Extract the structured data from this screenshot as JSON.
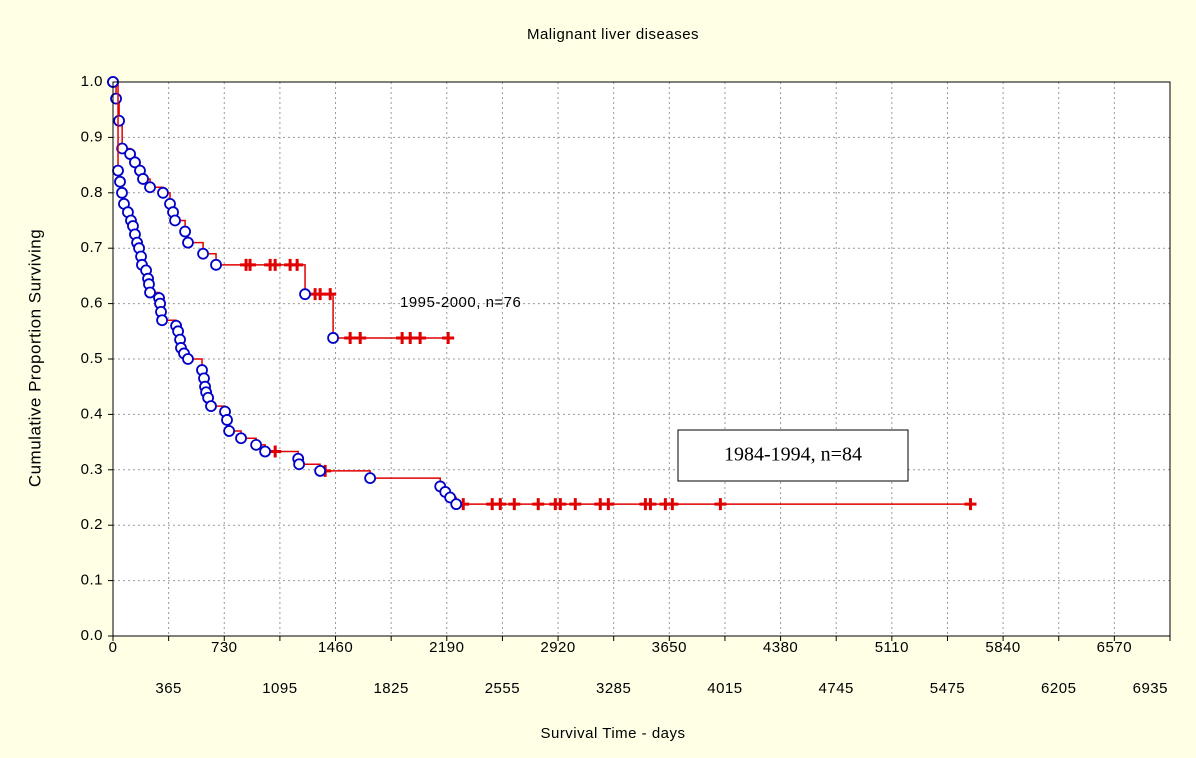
{
  "chart_data": {
    "type": "kaplan-meier",
    "title": "Malignant liver diseases",
    "xlabel": "Survival Time - days",
    "ylabel": "Cumulative Proportion Surviving",
    "xlim": [
      0,
      6935
    ],
    "xticks": [
      0,
      365,
      730,
      1095,
      1460,
      1825,
      2190,
      2555,
      2920,
      3285,
      3650,
      4015,
      4380,
      4745,
      5110,
      5475,
      5840,
      6205,
      6570,
      6935
    ],
    "ylim": [
      0,
      1
    ],
    "yticks": [
      {
        "value": 0,
        "label": "0.0"
      },
      0.1,
      0.2,
      0.3,
      0.4,
      0.5,
      0.6,
      0.7,
      0.8,
      0.9,
      {
        "value": 1,
        "label": "1.0"
      }
    ],
    "grid": true,
    "annotations": [
      "1995-2000, n=76",
      "1984-1994, n=84"
    ],
    "series": [
      {
        "color": "#e00000",
        "marker_color": "#0000c8",
        "x": [
          0,
          20,
          40,
          60,
          112,
          144,
          177,
          197,
          243,
          328,
          374,
          394,
          407,
          473,
          492,
          591,
          676,
          1260,
          1444
        ],
        "values": [
          1.0,
          0.97,
          0.93,
          0.88,
          0.87,
          0.855,
          0.84,
          0.825,
          0.81,
          0.8,
          0.78,
          0.765,
          0.75,
          0.73,
          0.71,
          0.69,
          0.67,
          0.617,
          0.538
        ],
        "censored_x": [
          873,
          899,
          1031,
          1064,
          1162,
          1208,
          1326,
          1359,
          1425,
          1556,
          1622,
          1897,
          1950,
          2015,
          2199
        ],
        "censored_values": [
          0.67,
          0.67,
          0.67,
          0.67,
          0.67,
          0.67,
          0.617,
          0.617,
          0.617,
          0.538,
          0.538,
          0.538,
          0.538,
          0.538,
          0.538
        ]
      },
      {
        "color": "#e00000",
        "marker_color": "#0000c8",
        "x": [
          0,
          33,
          46,
          59,
          72,
          98,
          118,
          131,
          144,
          158,
          171,
          184,
          190,
          217,
          230,
          236,
          243,
          302,
          309,
          315,
          322,
          414,
          427,
          440,
          446,
          466,
          492,
          584,
          597,
          604,
          611,
          624,
          643,
          735,
          748,
          762,
          840,
          939,
          998,
          1215,
          1221,
          1359,
          1687,
          2147,
          2180,
          2212,
          2252
        ],
        "values": [
          1.0,
          0.84,
          0.82,
          0.8,
          0.78,
          0.765,
          0.75,
          0.74,
          0.725,
          0.71,
          0.7,
          0.685,
          0.67,
          0.66,
          0.645,
          0.635,
          0.62,
          0.61,
          0.6,
          0.585,
          0.57,
          0.56,
          0.55,
          0.535,
          0.52,
          0.51,
          0.5,
          0.48,
          0.465,
          0.45,
          0.44,
          0.43,
          0.415,
          0.405,
          0.39,
          0.37,
          0.357,
          0.345,
          0.333,
          0.32,
          0.31,
          0.298,
          0.285,
          0.27,
          0.26,
          0.25,
          0.238
        ],
        "censored_x": [
          1064,
          1392,
          2298,
          2488,
          2541,
          2633,
          2790,
          2902,
          2935,
          3033,
          3197,
          3250,
          3493,
          3526,
          3624,
          3670,
          3985,
          5626
        ],
        "censored_values": [
          0.333,
          0.298,
          0.238,
          0.238,
          0.238,
          0.238,
          0.238,
          0.238,
          0.238,
          0.238,
          0.238,
          0.238,
          0.238,
          0.238,
          0.238,
          0.238,
          0.238,
          0.238
        ]
      }
    ]
  }
}
